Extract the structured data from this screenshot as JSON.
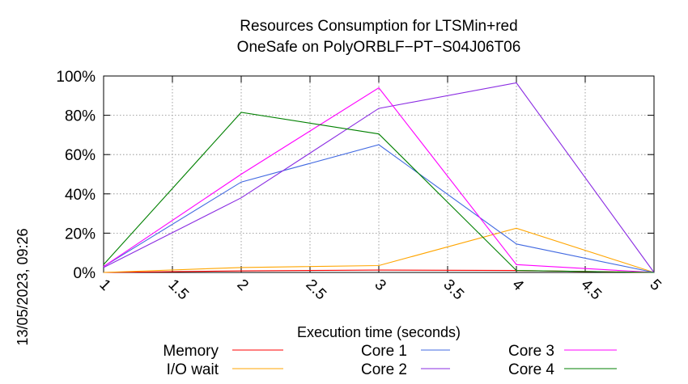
{
  "chart_data": {
    "type": "line",
    "title": "Resources Consumption for LTSMin+red",
    "subtitle": "OneSafe on PolyORBLF−PT−S04J06T06",
    "xlabel": "Execution time (seconds)",
    "ylabel": "",
    "side_label": "13/05/2023, 09:26",
    "xlim": [
      1,
      5
    ],
    "ylim": [
      0,
      100
    ],
    "x_ticks": [
      "1",
      "1.5",
      "2",
      "2.5",
      "3",
      "3.5",
      "4",
      "4.5",
      "5"
    ],
    "x_tick_values": [
      1,
      1.5,
      2,
      2.5,
      3,
      3.5,
      4,
      4.5,
      5
    ],
    "y_ticks": [
      "0%",
      "20%",
      "40%",
      "60%",
      "80%",
      "100%"
    ],
    "y_tick_values": [
      0,
      20,
      40,
      60,
      80,
      100
    ],
    "grid": true,
    "legend_position": "bottom",
    "x": [
      1,
      2,
      3,
      4,
      5
    ],
    "series": [
      {
        "name": "Memory",
        "color": "#ff0000",
        "values": [
          0,
          0.8,
          1.2,
          1.0,
          0
        ]
      },
      {
        "name": "I/O wait",
        "color": "#ffa500",
        "values": [
          0,
          2.5,
          3.5,
          22.5,
          0
        ]
      },
      {
        "name": "Core 1",
        "color": "#4169e1",
        "values": [
          3,
          46,
          65,
          14.5,
          0
        ]
      },
      {
        "name": "Core 2",
        "color": "#8a2be2",
        "values": [
          2.5,
          38,
          83.5,
          96.5,
          0
        ]
      },
      {
        "name": "Core 3",
        "color": "#ff00ff",
        "values": [
          3,
          50,
          94,
          4,
          0
        ]
      },
      {
        "name": "Core 4",
        "color": "#008000",
        "values": [
          4,
          81.5,
          70.5,
          1,
          0
        ]
      }
    ]
  }
}
